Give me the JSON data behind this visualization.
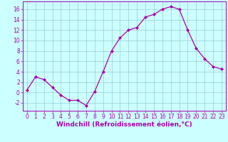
{
  "x": [
    0,
    1,
    2,
    3,
    4,
    5,
    6,
    7,
    8,
    9,
    10,
    11,
    12,
    13,
    14,
    15,
    16,
    17,
    18,
    19,
    20,
    21,
    22,
    23
  ],
  "y": [
    0.5,
    3.0,
    2.5,
    1.0,
    -0.5,
    -1.5,
    -1.5,
    -2.5,
    0.2,
    4.0,
    8.0,
    10.5,
    12.0,
    12.5,
    14.5,
    15.0,
    16.0,
    16.5,
    16.0,
    12.0,
    8.5,
    6.5,
    5.0,
    4.5
  ],
  "line_color": "#AA00AA",
  "marker": "D",
  "marker_size": 2,
  "bg_color": "#CCFFFF",
  "grid_color": "#99CCCC",
  "xlabel": "Windchill (Refroidissement éolien,°C)",
  "ylabel": "",
  "xlim": [
    -0.5,
    23.5
  ],
  "ylim": [
    -3.5,
    17.5
  ],
  "yticks": [
    -2,
    0,
    2,
    4,
    6,
    8,
    10,
    12,
    14,
    16
  ],
  "xticks": [
    0,
    1,
    2,
    3,
    4,
    5,
    6,
    7,
    8,
    9,
    10,
    11,
    12,
    13,
    14,
    15,
    16,
    17,
    18,
    19,
    20,
    21,
    22,
    23
  ],
  "tick_color": "#AA00AA",
  "label_color": "#AA00AA",
  "axis_color": "#AA00AA",
  "tick_fontsize": 5.5,
  "xlabel_fontsize": 6.5
}
